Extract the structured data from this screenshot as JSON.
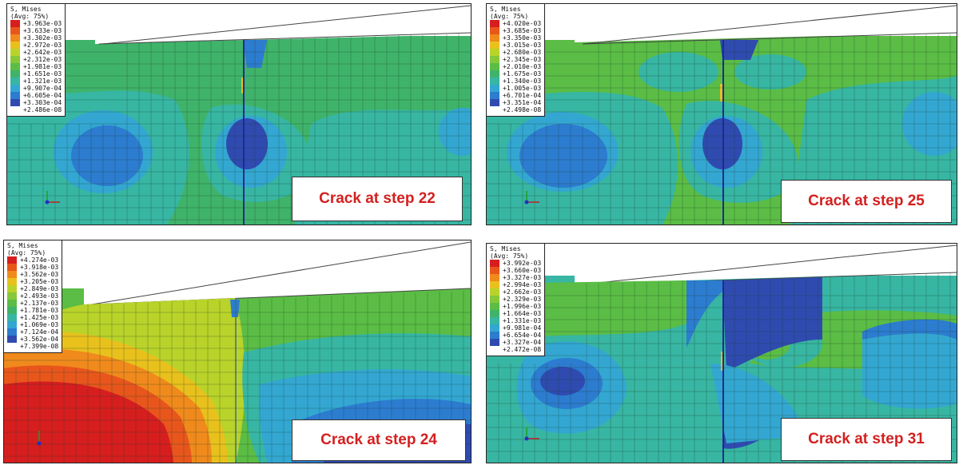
{
  "panels": [
    {
      "caption": "Crack at step 22",
      "legend_title_1": "S, Mises",
      "legend_title_2": "(Avg: 75%)",
      "legend_values": [
        "+3.963e-03",
        "+3.633e-03",
        "+3.302e-03",
        "+2.972e-03",
        "+2.642e-03",
        "+2.312e-03",
        "+1.981e-03",
        "+1.651e-03",
        "+1.321e-03",
        "+9.907e-04",
        "+6.605e-04",
        "+3.303e-04",
        "+2.486e-08"
      ]
    },
    {
      "caption": "Crack at step 25",
      "legend_title_1": "S, Mises",
      "legend_title_2": "(Avg: 75%)",
      "legend_values": [
        "+4.020e-03",
        "+3.685e-03",
        "+3.350e-03",
        "+3.015e-03",
        "+2.680e-03",
        "+2.345e-03",
        "+2.010e-03",
        "+1.675e-03",
        "+1.340e-03",
        "+1.005e-03",
        "+6.701e-04",
        "+3.351e-04",
        "+2.498e-08"
      ]
    },
    {
      "caption": "Crack at step 24",
      "legend_title_1": "S, Mises",
      "legend_title_2": "(Avg: 75%)",
      "legend_values": [
        "+4.274e-03",
        "+3.918e-03",
        "+3.562e-03",
        "+3.205e-03",
        "+2.849e-03",
        "+2.493e-03",
        "+2.137e-03",
        "+1.781e-03",
        "+1.425e-03",
        "+1.069e-03",
        "+7.124e-04",
        "+3.562e-04",
        "+7.399e-08"
      ]
    },
    {
      "caption": "Crack at step 31",
      "legend_title_1": "S, Mises",
      "legend_title_2": "(Avg: 75%)",
      "legend_values": [
        "+3.992e-03",
        "+3.660e-03",
        "+3.327e-03",
        "+2.994e-03",
        "+2.662e-03",
        "+2.329e-03",
        "+1.996e-03",
        "+1.664e-03",
        "+1.331e-03",
        "+9.981e-04",
        "+6.654e-04",
        "+3.327e-04",
        "+2.472e-08"
      ]
    }
  ],
  "colors": {
    "contour_scale": [
      "#d71e1e",
      "#e8561c",
      "#f08a1c",
      "#e8c11d",
      "#b9d32a",
      "#86c83a",
      "#5bbd45",
      "#3fb36a",
      "#37b6a3",
      "#33a7d2",
      "#2c7cd0",
      "#2f4bb0",
      "#1f2a94"
    ],
    "caption_text": "#d42020"
  }
}
